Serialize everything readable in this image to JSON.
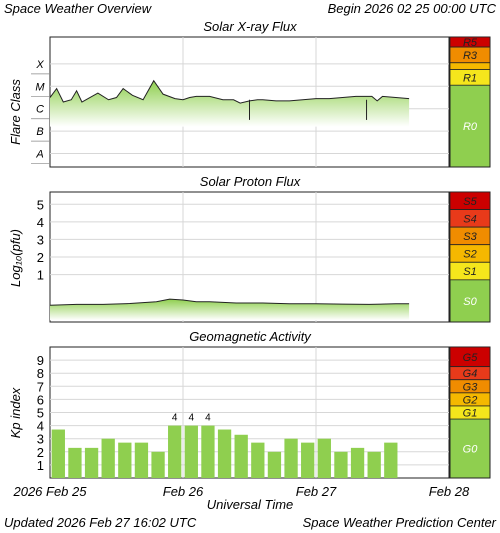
{
  "header": {
    "title": "Space Weather Overview",
    "begin": "Begin 2026 02 25 00:00 UTC"
  },
  "footer": {
    "updated": "Updated 2026 Feb 27 16:02 UTC",
    "center": "Space Weather Prediction Center"
  },
  "colors": {
    "green": "#8fcf4f",
    "green_light": "#d8efbf",
    "s_scale": [
      "#f5e61c",
      "#f5b800",
      "#f08c00",
      "#e83a1a",
      "#cc0000"
    ],
    "grid": "#d7d7d7"
  },
  "chart_data": [
    {
      "id": "xray",
      "type": "area",
      "title": "Solar X-ray Flux",
      "ylabel": "Flare Class",
      "ylevels": [
        "A",
        "B",
        "C",
        "M",
        "X"
      ],
      "ylim": [
        -8.6,
        -2.8
      ],
      "x": [
        0,
        0.05,
        0.1,
        0.16,
        0.2,
        0.24,
        0.3,
        0.36,
        0.44,
        0.5,
        0.55,
        0.62,
        0.7,
        0.78,
        0.85,
        0.94,
        1.0,
        1.05,
        1.1,
        1.2,
        1.3,
        1.38,
        1.43,
        1.5,
        1.56,
        1.6,
        1.7,
        1.8,
        1.9,
        2.0,
        2.1,
        2.2,
        2.3,
        2.42,
        2.46,
        2.5,
        2.6,
        2.7
      ],
      "y": [
        -5.5,
        -5.1,
        -5.7,
        -5.6,
        -5.2,
        -5.7,
        -5.5,
        -5.3,
        -5.6,
        -5.5,
        -5.1,
        -5.4,
        -5.6,
        -4.75,
        -5.35,
        -5.55,
        -5.6,
        -5.5,
        -5.45,
        -5.45,
        -5.6,
        -5.6,
        -5.75,
        -5.65,
        -5.6,
        -5.6,
        -5.65,
        -5.65,
        -5.6,
        -5.55,
        -5.55,
        -5.5,
        -5.45,
        -5.45,
        -5.65,
        -5.45,
        -5.5,
        -5.55
      ],
      "dips": [
        [
          1.5,
          -6.5
        ],
        [
          2.38,
          -6.5
        ]
      ],
      "xlim": [
        0,
        3
      ],
      "scale_label_top": [
        "R5",
        "R3",
        "R1"
      ],
      "scale_label_base": "R0"
    },
    {
      "id": "proton",
      "type": "area",
      "title": "Solar Proton Flux",
      "ylabel": "Log₁₀(pfu)",
      "yticks": [
        "1",
        "2",
        "3",
        "4",
        "5"
      ],
      "ylim": [
        -1.7,
        5.7
      ],
      "x": [
        0,
        0.2,
        0.4,
        0.6,
        0.8,
        0.9,
        1.0,
        1.1,
        1.2,
        1.4,
        1.6,
        1.8,
        2.0,
        2.2,
        2.4,
        2.6,
        2.7
      ],
      "y": [
        -0.75,
        -0.7,
        -0.7,
        -0.65,
        -0.55,
        -0.4,
        -0.45,
        -0.55,
        -0.55,
        -0.62,
        -0.62,
        -0.66,
        -0.66,
        -0.68,
        -0.7,
        -0.66,
        -0.66
      ],
      "xlim": [
        0,
        3
      ],
      "scale_label_top": [
        "S5",
        "S4",
        "S3",
        "S2",
        "S1"
      ],
      "scale_label_base": "S0"
    },
    {
      "id": "kp",
      "type": "bar",
      "title": "Geomagnetic Activity",
      "ylabel": "Kp index",
      "yticks": [
        "1",
        "2",
        "3",
        "4",
        "5",
        "6",
        "7",
        "8",
        "9"
      ],
      "ylim": [
        0,
        10
      ],
      "bar_width_days": 0.1,
      "values": [
        3.7,
        2.3,
        2.3,
        3.0,
        2.7,
        2.7,
        2.0,
        4.0,
        4.0,
        4.0,
        3.7,
        3.3,
        2.7,
        2.0,
        3.0,
        2.7,
        3.0,
        2.0,
        2.3,
        2.0,
        2.7
      ],
      "labels": [
        "",
        "",
        "",
        "",
        "",
        "",
        "",
        "4",
        "4",
        "4",
        "",
        "",
        "",
        "",
        "",
        "",
        "",
        "",
        "",
        "",
        ""
      ],
      "xlim": [
        0,
        3
      ],
      "scale_label_top": [
        "G5",
        "G4",
        "G3",
        "G2",
        "G1"
      ],
      "scale_label_base": "G0"
    }
  ],
  "x_axis": {
    "tick_labels": [
      "2026 Feb 25",
      "Feb 26",
      "Feb 27",
      "Feb 28"
    ],
    "label": "Universal Time"
  }
}
